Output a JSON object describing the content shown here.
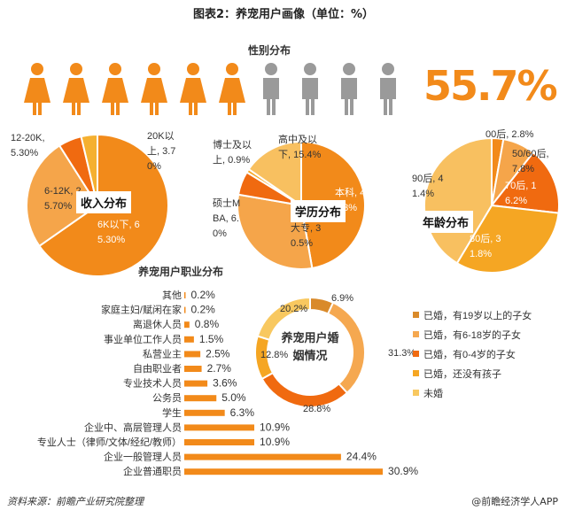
{
  "title": "图表2：养宠用户画像（单位：%）",
  "footer": {
    "source": "资料来源：前瞻产业研究院整理",
    "brand": "@前瞻经济学人APP"
  },
  "colors": {
    "female": "#f28a1a",
    "male": "#9a9a9a"
  },
  "chart_data": [
    {
      "type": "pictogram",
      "title": "性别分布",
      "value": 55.7,
      "value_label": "55.7%",
      "icons": 10
    },
    {
      "type": "pie",
      "title": "收入分布",
      "slices": [
        {
          "label": "6K以下, 65.30%",
          "value": 65.3,
          "color": "#f28a1a"
        },
        {
          "label": "6-12K, 25.70%",
          "value": 25.7,
          "color": "#f5a54a"
        },
        {
          "label": "12-20K, 5.30%",
          "value": 5.3,
          "color": "#f06a10"
        },
        {
          "label": "20K以上, 3.70%",
          "value": 3.7,
          "color": "#f5b030"
        }
      ]
    },
    {
      "type": "pie",
      "title": "学历分布",
      "slices": [
        {
          "label": "本科, 47.3%",
          "value": 47.3,
          "color": "#f28a1a"
        },
        {
          "label": "大专, 30.5%",
          "value": 30.5,
          "color": "#f5a54a"
        },
        {
          "label": "硕士MBA, 6.0%",
          "value": 6.0,
          "color": "#f06a10"
        },
        {
          "label": "博士及以上, 0.9%",
          "value": 0.9,
          "color": "#f5a623"
        },
        {
          "label": "高中及以下, 15.4%",
          "value": 15.4,
          "color": "#f8c060"
        }
      ]
    },
    {
      "type": "pie",
      "title": "年龄分布",
      "slices": [
        {
          "label": "00后, 2.8%",
          "value": 2.8,
          "color": "#f28a1a"
        },
        {
          "label": "50/60后, 7.8%",
          "value": 7.8,
          "color": "#f5a54a"
        },
        {
          "label": "70后, 16.2%",
          "value": 16.2,
          "color": "#f06a10"
        },
        {
          "label": "80后, 31.8%",
          "value": 31.8,
          "color": "#f5a623"
        },
        {
          "label": "90后, 41.4%",
          "value": 41.4,
          "color": "#f8c060"
        }
      ]
    },
    {
      "type": "donut",
      "title": "养宠用户婚姻情况",
      "slices": [
        {
          "label": "已婚，有19岁以上的子女",
          "value": 6.9,
          "text": "6.9%",
          "color": "#d98a2a"
        },
        {
          "label": "已婚，有6-18岁的子女",
          "value": 31.3,
          "text": "31.3%",
          "color": "#f5a850"
        },
        {
          "label": "已婚，有0-4岁的子女",
          "value": 28.8,
          "text": "28.8%",
          "color": "#f06a10"
        },
        {
          "label": "已婚，还没有孩子",
          "value": 12.8,
          "text": "12.8%",
          "color": "#f5a623"
        },
        {
          "label": "未婚",
          "value": 20.2,
          "text": "20.2%",
          "color": "#f8c860"
        }
      ]
    },
    {
      "type": "bar",
      "orientation": "horizontal",
      "title": "养宠用户职业分布",
      "color": "#f28a1a",
      "categories": [
        "其他",
        "家庭主妇/赋闲在家",
        "离退休人员",
        "事业单位工作人员",
        "私营业主",
        "自由职业者",
        "专业技术人员",
        "公务员",
        "学生",
        "企业中、高层管理人员",
        "专业人士（律师/文体/经纪/教师）",
        "企业一般管理人员",
        "企业普通职员"
      ],
      "values": [
        0.2,
        0.2,
        0.8,
        1.5,
        2.5,
        2.7,
        3.6,
        5.0,
        6.3,
        10.9,
        10.9,
        24.4,
        30.9
      ],
      "labels": [
        "0.2%",
        "0.2%",
        "0.8%",
        "1.5%",
        "2.5%",
        "2.7%",
        "3.6%",
        "5.0%",
        "6.3%",
        "10.9%",
        "10.9%",
        "24.4%",
        "30.9%"
      ]
    }
  ]
}
